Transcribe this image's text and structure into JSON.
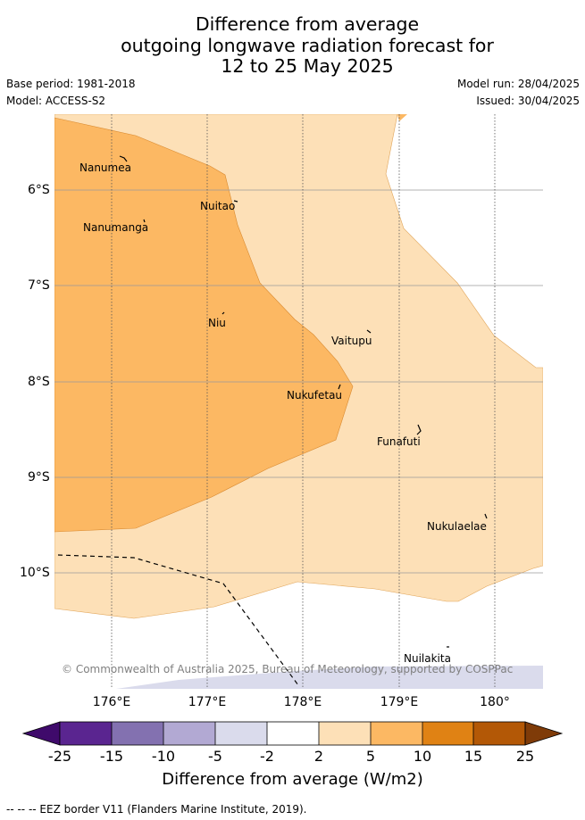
{
  "title_lines": [
    "Difference from average",
    "outgoing longwave radiation forecast for",
    "12 to 25 May 2025"
  ],
  "base_period": "Base period: 1981-2018",
  "model": "Model: ACCESS-S2",
  "model_run": "Model run: 28/04/2025",
  "issued": "Issued: 30/04/2025",
  "lat_labels": [
    "6°S",
    "7°S",
    "8°S",
    "9°S",
    "10°S"
  ],
  "lon_labels": [
    "176°E",
    "177°E",
    "178°E",
    "179°E",
    "180°"
  ],
  "places": [
    {
      "name": "Nanumea"
    },
    {
      "name": "Nuitao"
    },
    {
      "name": "Nanumanga"
    },
    {
      "name": "Niu"
    },
    {
      "name": "Vaitupu"
    },
    {
      "name": "Nukufetau"
    },
    {
      "name": "Funafuti"
    },
    {
      "name": "Nukulaelae"
    },
    {
      "name": "Nuilakita"
    }
  ],
  "copyright": "© Commonwealth of Australia 2025, Bureau of Meteorology, supported by COSPPac",
  "colorbar": {
    "ticks": [
      "-25",
      "-15",
      "-10",
      "-5",
      "-2",
      "2",
      "5",
      "10",
      "15",
      "25"
    ],
    "colors": [
      "#3f0a6b",
      "#5a2590",
      "#8371b0",
      "#b2a9d3",
      "#dadbec",
      "#ffffff",
      "#fde0b7",
      "#fcb863",
      "#e08214",
      "#b35806",
      "#7f3b08"
    ],
    "title": "Difference from average (W/m2)"
  },
  "legend_footer": "-- -- -- EEZ border V11 (Flanders Marine Institute, 2019)."
}
